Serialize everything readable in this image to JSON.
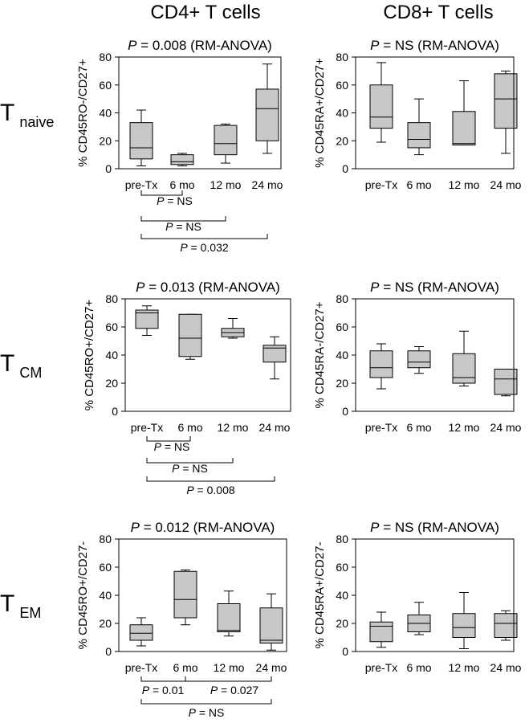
{
  "column_titles": [
    "CD4+ T cells",
    "CD8+ T cells"
  ],
  "row_labels": [
    {
      "main": "T",
      "sub": "naive"
    },
    {
      "main": "T",
      "sub": "CM"
    },
    {
      "main": "T",
      "sub": "EM"
    }
  ],
  "chart_data": [
    {
      "type": "box",
      "title": "P = 0.008 (RM-ANOVA)",
      "ylabel": "% CD45RO-/CD27+",
      "categories": [
        "pre-Tx",
        "6 mo",
        "12 mo",
        "24 mo"
      ],
      "ylim": [
        0,
        80
      ],
      "yticks": [
        0,
        20,
        40,
        60,
        80
      ],
      "boxes": [
        {
          "min": 2,
          "q1": 7,
          "median": 15,
          "q3": 33,
          "max": 42
        },
        {
          "min": 2,
          "q1": 3,
          "median": 5,
          "q3": 10,
          "max": 11
        },
        {
          "min": 4,
          "q1": 10,
          "median": 18,
          "q3": 31,
          "max": 32
        },
        {
          "min": 11,
          "q1": 20,
          "median": 43,
          "q3": 57,
          "max": 75
        }
      ],
      "comparisons": [
        {
          "from": 0,
          "to": 1,
          "label": "P = NS"
        },
        {
          "from": 0,
          "to": 2,
          "label": "P = NS"
        },
        {
          "from": 0,
          "to": 3,
          "label": "P = 0.032"
        }
      ]
    },
    {
      "type": "box",
      "title": "P = NS (RM-ANOVA)",
      "ylabel": "% CD45RA+/CD27+",
      "categories": [
        "pre-Tx",
        "6 mo",
        "12 mo",
        "24 mo"
      ],
      "ylim": [
        0,
        80
      ],
      "yticks": [
        0,
        20,
        40,
        60,
        80
      ],
      "boxes": [
        {
          "min": 19,
          "q1": 29,
          "median": 37,
          "q3": 60,
          "max": 76
        },
        {
          "min": 10,
          "q1": 15,
          "median": 21,
          "q3": 33,
          "max": 50
        },
        {
          "min": 17,
          "q1": 17,
          "median": 18,
          "q3": 41,
          "max": 63
        },
        {
          "min": 11,
          "q1": 29,
          "median": 50,
          "q3": 68,
          "max": 70
        }
      ],
      "comparisons": []
    },
    {
      "type": "box",
      "title": "P = 0.013 (RM-ANOVA)",
      "ylabel": "% CD45RO+/CD27+",
      "categories": [
        "pre-Tx",
        "6 mo",
        "12 mo",
        "24 mo"
      ],
      "ylim": [
        0,
        80
      ],
      "yticks": [
        0,
        20,
        40,
        60,
        80
      ],
      "boxes": [
        {
          "min": 54,
          "q1": 59,
          "median": 70,
          "q3": 72,
          "max": 75
        },
        {
          "min": 37,
          "q1": 39,
          "median": 52,
          "q3": 69,
          "max": 69
        },
        {
          "min": 52,
          "q1": 53,
          "median": 56,
          "q3": 59,
          "max": 66
        },
        {
          "min": 23,
          "q1": 35,
          "median": 45,
          "q3": 47,
          "max": 53
        }
      ],
      "comparisons": [
        {
          "from": 0,
          "to": 1,
          "label": "P = NS"
        },
        {
          "from": 0,
          "to": 2,
          "label": "P = NS"
        },
        {
          "from": 0,
          "to": 3,
          "label": "P = 0.008"
        }
      ]
    },
    {
      "type": "box",
      "title": "P = NS (RM-ANOVA)",
      "ylabel": "% CD45RA-/CD27+",
      "categories": [
        "pre-Tx",
        "6 mo",
        "12 mo",
        "24 mo"
      ],
      "ylim": [
        0,
        80
      ],
      "yticks": [
        0,
        20,
        40,
        60,
        80
      ],
      "boxes": [
        {
          "min": 16,
          "q1": 24,
          "median": 31,
          "q3": 43,
          "max": 48
        },
        {
          "min": 27,
          "q1": 31,
          "median": 35,
          "q3": 43,
          "max": 46
        },
        {
          "min": 18,
          "q1": 20,
          "median": 24,
          "q3": 41,
          "max": 57
        },
        {
          "min": 11,
          "q1": 12,
          "median": 23,
          "q3": 30,
          "max": 30
        }
      ],
      "comparisons": []
    },
    {
      "type": "box",
      "title": "P = 0.012 (RM-ANOVA)",
      "ylabel": "% CD45RO+/CD27-",
      "categories": [
        "pre-Tx",
        "6 mo",
        "12 mo",
        "24 mo"
      ],
      "ylim": [
        0,
        80
      ],
      "yticks": [
        0,
        20,
        40,
        60,
        80
      ],
      "boxes": [
        {
          "min": 4,
          "q1": 8,
          "median": 13,
          "q3": 19,
          "max": 24
        },
        {
          "min": 19,
          "q1": 24,
          "median": 37,
          "q3": 57,
          "max": 58
        },
        {
          "min": 11,
          "q1": 14,
          "median": 15,
          "q3": 34,
          "max": 43
        },
        {
          "min": 1,
          "q1": 6,
          "median": 8,
          "q3": 31,
          "max": 41
        }
      ],
      "comparisons": [
        {
          "from": 0,
          "to": 1,
          "label": "P = 0.01"
        },
        {
          "from": 1,
          "to": 3,
          "label": "P = 0.027"
        },
        {
          "from": 0,
          "to": 3,
          "label": "P = NS"
        }
      ]
    },
    {
      "type": "box",
      "title": "P = NS (RM-ANOVA)",
      "ylabel": "% CD45RA+/CD27-",
      "categories": [
        "pre-Tx",
        "6 mo",
        "12 mo",
        "24 mo"
      ],
      "ylim": [
        0,
        80
      ],
      "yticks": [
        0,
        20,
        40,
        60,
        80
      ],
      "boxes": [
        {
          "min": 3,
          "q1": 7,
          "median": 18,
          "q3": 21,
          "max": 28
        },
        {
          "min": 12,
          "q1": 14,
          "median": 20,
          "q3": 26,
          "max": 35
        },
        {
          "min": 2,
          "q1": 10,
          "median": 17,
          "q3": 27,
          "max": 42
        },
        {
          "min": 8,
          "q1": 10,
          "median": 20,
          "q3": 27,
          "max": 29
        }
      ],
      "comparisons": []
    }
  ]
}
